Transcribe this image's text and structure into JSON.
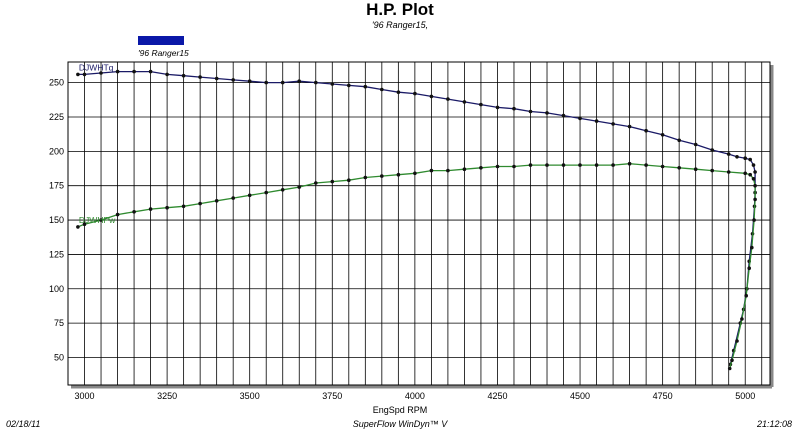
{
  "header": {
    "title": "H.P. Plot",
    "subtitle": "'96 Ranger15,"
  },
  "legend": {
    "label": "'96 Ranger15",
    "color": "#0a18a8"
  },
  "footer": {
    "date": "02/18/11",
    "software": "SuperFlow WinDyn™ V",
    "time": "21:12:08"
  },
  "chart_data": {
    "type": "line",
    "title": "H.P. Plot",
    "subtitle": "'96 Ranger15,",
    "xlabel": "EngSpd  RPM",
    "ylabel": "",
    "xlim": [
      2950,
      5075
    ],
    "ylim": [
      30,
      265
    ],
    "x_ticks": [
      "3000",
      "3250",
      "3500",
      "3750",
      "4000",
      "4250",
      "4500",
      "4750",
      "5000"
    ],
    "y_ticks": [
      "50",
      "75",
      "100",
      "125",
      "150",
      "175",
      "200",
      "225",
      "250"
    ],
    "grid": true,
    "series": [
      {
        "name": "DJWHTq",
        "color": "#1a1a66",
        "points": [
          [
            2980,
            256
          ],
          [
            3000,
            256
          ],
          [
            3050,
            257
          ],
          [
            3100,
            258
          ],
          [
            3150,
            258
          ],
          [
            3200,
            258
          ],
          [
            3250,
            256
          ],
          [
            3300,
            255
          ],
          [
            3350,
            254
          ],
          [
            3400,
            253
          ],
          [
            3450,
            252
          ],
          [
            3500,
            251
          ],
          [
            3550,
            250
          ],
          [
            3600,
            250
          ],
          [
            3650,
            251
          ],
          [
            3700,
            250
          ],
          [
            3750,
            249
          ],
          [
            3800,
            248
          ],
          [
            3850,
            247
          ],
          [
            3900,
            245
          ],
          [
            3950,
            243
          ],
          [
            4000,
            242
          ],
          [
            4050,
            240
          ],
          [
            4100,
            238
          ],
          [
            4150,
            236
          ],
          [
            4200,
            234
          ],
          [
            4250,
            232
          ],
          [
            4300,
            231
          ],
          [
            4350,
            229
          ],
          [
            4400,
            228
          ],
          [
            4450,
            226
          ],
          [
            4500,
            224
          ],
          [
            4550,
            222
          ],
          [
            4600,
            220
          ],
          [
            4650,
            218
          ],
          [
            4700,
            215
          ],
          [
            4750,
            212
          ],
          [
            4800,
            208
          ],
          [
            4850,
            205
          ],
          [
            4900,
            201
          ],
          [
            4950,
            198
          ],
          [
            4975,
            196
          ],
          [
            5000,
            195
          ],
          [
            5015,
            194
          ],
          [
            5025,
            190
          ],
          [
            5030,
            185
          ],
          [
            5030,
            170
          ],
          [
            5028,
            160
          ],
          [
            5022,
            140
          ],
          [
            5012,
            120
          ],
          [
            5005,
            100
          ],
          [
            4995,
            85
          ],
          [
            4985,
            75
          ],
          [
            4965,
            55
          ],
          [
            4955,
            45
          ]
        ]
      },
      {
        "name": "DJWHPw",
        "color": "#2f8a2f",
        "points": [
          [
            2980,
            145
          ],
          [
            3000,
            147
          ],
          [
            3050,
            150
          ],
          [
            3100,
            154
          ],
          [
            3150,
            156
          ],
          [
            3200,
            158
          ],
          [
            3250,
            159
          ],
          [
            3300,
            160
          ],
          [
            3350,
            162
          ],
          [
            3400,
            164
          ],
          [
            3450,
            166
          ],
          [
            3500,
            168
          ],
          [
            3550,
            170
          ],
          [
            3600,
            172
          ],
          [
            3650,
            174
          ],
          [
            3700,
            177
          ],
          [
            3750,
            178
          ],
          [
            3800,
            179
          ],
          [
            3850,
            181
          ],
          [
            3900,
            182
          ],
          [
            3950,
            183
          ],
          [
            4000,
            184
          ],
          [
            4050,
            186
          ],
          [
            4100,
            186
          ],
          [
            4150,
            187
          ],
          [
            4200,
            188
          ],
          [
            4250,
            189
          ],
          [
            4300,
            189
          ],
          [
            4350,
            190
          ],
          [
            4400,
            190
          ],
          [
            4450,
            190
          ],
          [
            4500,
            190
          ],
          [
            4550,
            190
          ],
          [
            4600,
            190
          ],
          [
            4650,
            191
          ],
          [
            4700,
            190
          ],
          [
            4750,
            189
          ],
          [
            4800,
            188
          ],
          [
            4850,
            187
          ],
          [
            4900,
            186
          ],
          [
            4950,
            185
          ],
          [
            5000,
            184
          ],
          [
            5015,
            183
          ],
          [
            5025,
            180
          ],
          [
            5030,
            175
          ],
          [
            5030,
            165
          ],
          [
            5027,
            150
          ],
          [
            5020,
            130
          ],
          [
            5012,
            115
          ],
          [
            5003,
            95
          ],
          [
            4990,
            78
          ],
          [
            4975,
            62
          ],
          [
            4960,
            48
          ],
          [
            4953,
            42
          ]
        ]
      }
    ]
  }
}
